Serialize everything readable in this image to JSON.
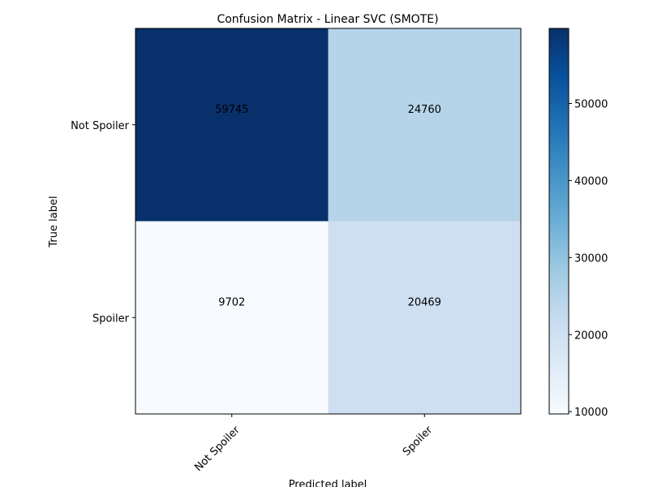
{
  "chart_data": {
    "type": "heatmap",
    "title": "Confusion Matrix - Linear SVC (SMOTE)",
    "xlabel": "Predicted label",
    "ylabel": "True label",
    "x_categories": [
      "Not Spoiler",
      "Spoiler"
    ],
    "y_categories": [
      "Not Spoiler",
      "Spoiler"
    ],
    "matrix": [
      [
        59745,
        24760
      ],
      [
        9702,
        20469
      ]
    ],
    "colormap": "Blues",
    "colorbar": {
      "range": [
        9702,
        59745
      ],
      "ticks": [
        10000,
        20000,
        30000,
        40000,
        50000
      ],
      "tick_labels": [
        "10000",
        "20000",
        "30000",
        "40000",
        "50000"
      ]
    },
    "grid": false,
    "text_color_light": "#ffffff",
    "text_color_dark": "#000000"
  }
}
